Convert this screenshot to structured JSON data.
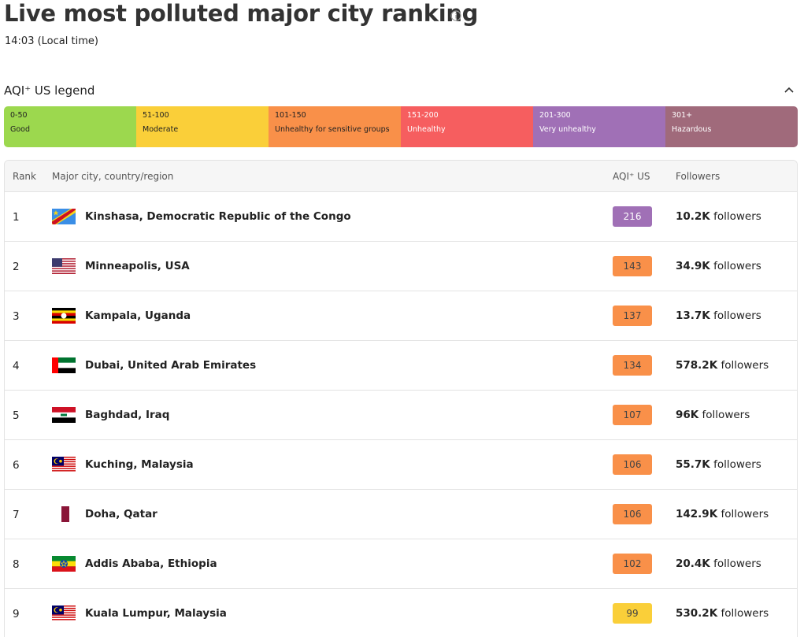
{
  "header": {
    "title": "Live most polluted major city ranking",
    "time": "14:03 (Local time)"
  },
  "legend": {
    "title": "AQI⁺ US legend",
    "items": [
      {
        "range": "0-50",
        "label": "Good",
        "color": "#9cd84e"
      },
      {
        "range": "51-100",
        "label": "Moderate",
        "color": "#facf39"
      },
      {
        "range": "101-150",
        "label": "Unhealthy for sensitive groups",
        "color": "#f99049"
      },
      {
        "range": "151-200",
        "label": "Unhealthy",
        "color": "#f65e5f"
      },
      {
        "range": "201-300",
        "label": "Very unhealthy",
        "color": "#a070b6"
      },
      {
        "range": "301+",
        "label": "Hazardous",
        "color": "#a06a7b"
      }
    ]
  },
  "table": {
    "columns": [
      "Rank",
      "Major city, country/region",
      "AQI⁺ US",
      "Followers"
    ],
    "follower_unit": "followers",
    "rows": [
      {
        "rank": 1,
        "city": "Kinshasa, Democratic Republic of the Congo",
        "aqi": 216,
        "followers": "10.2K",
        "color": "#a070b6"
      },
      {
        "rank": 2,
        "city": "Minneapolis, USA",
        "aqi": 143,
        "followers": "34.9K",
        "color": "#f99049"
      },
      {
        "rank": 3,
        "city": "Kampala, Uganda",
        "aqi": 137,
        "followers": "13.7K",
        "color": "#f99049"
      },
      {
        "rank": 4,
        "city": "Dubai, United Arab Emirates",
        "aqi": 134,
        "followers": "578.2K",
        "color": "#f99049"
      },
      {
        "rank": 5,
        "city": "Baghdad, Iraq",
        "aqi": 107,
        "followers": "96K",
        "color": "#f99049"
      },
      {
        "rank": 6,
        "city": "Kuching, Malaysia",
        "aqi": 106,
        "followers": "55.7K",
        "color": "#f99049"
      },
      {
        "rank": 7,
        "city": "Doha, Qatar",
        "aqi": 106,
        "followers": "142.9K",
        "color": "#f99049"
      },
      {
        "rank": 8,
        "city": "Addis Ababa, Ethiopia",
        "aqi": 102,
        "followers": "20.4K",
        "color": "#f99049"
      },
      {
        "rank": 9,
        "city": "Kuala Lumpur, Malaysia",
        "aqi": 99,
        "followers": "530.2K",
        "color": "#facf39"
      }
    ]
  }
}
